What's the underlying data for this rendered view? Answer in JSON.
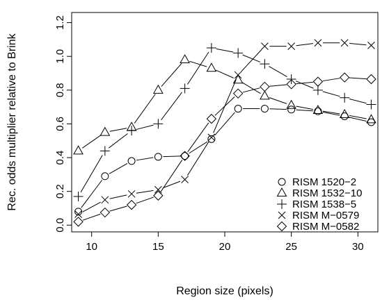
{
  "chart_data": {
    "type": "line",
    "title": "",
    "xlabel": "Region size (pixels)",
    "ylabel": "Rec. odds multiplier relative to Brink",
    "xlim": [
      8.5,
      31.5
    ],
    "ylim": [
      -0.04,
      1.26
    ],
    "xticks": [
      10,
      15,
      20,
      25,
      30
    ],
    "yticks": [
      0.0,
      0.2,
      0.4,
      0.6,
      0.8,
      1.0,
      1.2
    ],
    "grid": false,
    "legend_position": "bottom-right",
    "x": [
      9,
      11,
      13,
      15,
      17,
      19,
      21,
      23,
      25,
      27,
      29,
      31
    ],
    "series": [
      {
        "name": "RISM 1520−2",
        "marker": "circle",
        "values": [
          0.08,
          0.29,
          0.38,
          0.405,
          0.41,
          0.51,
          0.69,
          0.69,
          0.685,
          0.675,
          0.645,
          0.61
        ]
      },
      {
        "name": "RISM 1532−10",
        "marker": "triangle",
        "values": [
          0.44,
          0.55,
          0.58,
          0.8,
          0.98,
          0.93,
          0.86,
          0.765,
          0.71,
          0.68,
          0.655,
          0.625
        ]
      },
      {
        "name": "RISM 1538−5",
        "marker": "plus",
        "values": [
          0.17,
          0.44,
          0.56,
          0.6,
          0.81,
          1.05,
          1.02,
          0.955,
          0.865,
          0.8,
          0.755,
          0.715
        ]
      },
      {
        "name": "RISM M−0579",
        "marker": "cross",
        "values": [
          0.065,
          0.15,
          0.185,
          0.21,
          0.27,
          0.52,
          0.89,
          1.06,
          1.06,
          1.08,
          1.08,
          1.065
        ]
      },
      {
        "name": "RISM M−0582",
        "marker": "diamond",
        "values": [
          0.02,
          0.075,
          0.12,
          0.175,
          0.41,
          0.63,
          0.78,
          0.82,
          0.835,
          0.85,
          0.875,
          0.865
        ]
      }
    ]
  }
}
